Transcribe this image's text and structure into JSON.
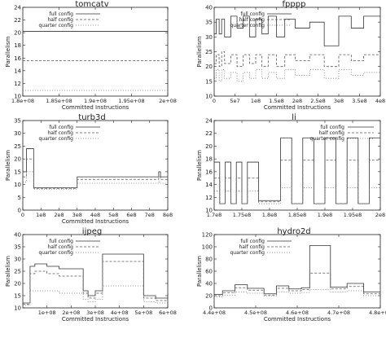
{
  "figure": {
    "colors": {
      "full": "#333333",
      "half": "#555555",
      "quarter": "#777777",
      "axis": "#222222"
    }
  },
  "chart_data": [
    {
      "type": "line",
      "title": "tomcatv",
      "xlabel": "Committed Instructions",
      "ylabel": "Parallelism",
      "xlim": [
        180000000,
        200000000
      ],
      "ylim": [
        10,
        24
      ],
      "xticks": [
        180000000,
        185000000,
        190000000,
        195000000,
        200000000
      ],
      "xtick_labels": [
        "1.8e+08",
        "1.85e+08",
        "1.9e+08",
        "1.95e+08",
        "2e+08"
      ],
      "yticks": [
        10,
        12,
        14,
        16,
        18,
        20,
        22,
        24
      ],
      "ytick_labels": [
        "10",
        "12",
        "14",
        "16",
        "18",
        "20",
        "22",
        "24"
      ],
      "legend": {
        "position": "top-left",
        "entries": [
          "full config",
          "half config",
          "quarter config"
        ]
      },
      "series": [
        {
          "name": "full config",
          "style": "solid",
          "x": [
            180000000,
            200000000
          ],
          "y": [
            20.2,
            20.2
          ]
        },
        {
          "name": "half config",
          "style": "dashed",
          "x": [
            180000000,
            200000000
          ],
          "y": [
            15.6,
            15.6
          ]
        },
        {
          "name": "quarter config",
          "style": "dotted",
          "x": [
            180000000,
            200000000
          ],
          "y": [
            10.9,
            10.9
          ]
        }
      ]
    },
    {
      "type": "line",
      "title": "fpppp",
      "xlabel": "Committed Instructions",
      "ylabel": "Parallelism",
      "xlim": [
        0,
        400000000
      ],
      "ylim": [
        10,
        40
      ],
      "xticks": [
        0,
        50000000,
        100000000,
        150000000,
        200000000,
        250000000,
        300000000,
        350000000,
        400000000
      ],
      "xtick_labels": [
        "0",
        "5e7",
        "1e8",
        "1.5e8",
        "2e8",
        "2.5e8",
        "3e8",
        "3.5e8",
        "4e8"
      ],
      "yticks": [
        10,
        15,
        20,
        25,
        30,
        35,
        40
      ],
      "ytick_labels": [
        "10",
        "15",
        "20",
        "25",
        "30",
        "35",
        "40"
      ],
      "legend": {
        "position": "top-left",
        "entries": [
          "full config",
          "half config",
          "quarter config"
        ]
      },
      "series": [
        {
          "name": "full config",
          "style": "solid",
          "x": [
            0,
            5000000,
            12000000,
            18000000,
            25000000,
            40000000,
            55000000,
            70000000,
            85000000,
            100000000,
            115000000,
            130000000,
            150000000,
            170000000,
            195000000,
            230000000,
            265000000,
            300000000,
            330000000,
            360000000,
            400000000
          ],
          "y": [
            31,
            36,
            31,
            36,
            30,
            37,
            33,
            37,
            30,
            36,
            31,
            37,
            30,
            36,
            33,
            35,
            27,
            37,
            33,
            37,
            36
          ]
        },
        {
          "name": "half config",
          "style": "dashed",
          "x": [
            0,
            5000000,
            12000000,
            18000000,
            25000000,
            40000000,
            55000000,
            70000000,
            85000000,
            100000000,
            115000000,
            130000000,
            150000000,
            170000000,
            195000000,
            230000000,
            265000000,
            300000000,
            330000000,
            360000000,
            400000000
          ],
          "y": [
            21,
            24,
            20,
            25,
            21,
            24,
            20,
            24,
            21,
            24,
            20,
            24,
            20,
            24,
            22,
            24,
            20,
            24,
            22,
            24,
            24
          ]
        },
        {
          "name": "quarter config",
          "style": "dotted",
          "x": [
            0,
            5000000,
            12000000,
            18000000,
            25000000,
            40000000,
            55000000,
            70000000,
            85000000,
            100000000,
            115000000,
            130000000,
            150000000,
            170000000,
            195000000,
            230000000,
            265000000,
            300000000,
            330000000,
            360000000,
            400000000
          ],
          "y": [
            16,
            19,
            15,
            19,
            16,
            18,
            15,
            18,
            16,
            19,
            16,
            18,
            16,
            19,
            17,
            19,
            16,
            19,
            17,
            18,
            18
          ]
        }
      ]
    },
    {
      "type": "line",
      "title": "turb3d",
      "xlabel": "Committed Instructions",
      "ylabel": "Parallelism",
      "xlim": [
        0,
        800000000
      ],
      "ylim": [
        0,
        35
      ],
      "xticks": [
        0,
        100000000,
        200000000,
        300000000,
        400000000,
        500000000,
        600000000,
        700000000,
        800000000
      ],
      "xtick_labels": [
        "0",
        "1e8",
        "2e8",
        "3e8",
        "4e8",
        "5e8",
        "6e8",
        "7e8",
        "8e8"
      ],
      "yticks": [
        0,
        5,
        10,
        15,
        20,
        25,
        30,
        35
      ],
      "ytick_labels": [
        "0",
        "5",
        "10",
        "15",
        "20",
        "25",
        "30",
        "35"
      ],
      "legend": {
        "position": "top-left",
        "entries": [
          "full config",
          "half config",
          "quarter config"
        ]
      },
      "series": [
        {
          "name": "full config",
          "style": "solid",
          "x": [
            0,
            20000000,
            60000000,
            100000000,
            300000000,
            740000000,
            750000000,
            760000000,
            800000000
          ],
          "y": [
            15,
            24,
            8.7,
            8.7,
            13,
            13,
            15,
            13,
            13
          ]
        },
        {
          "name": "half config",
          "style": "dashed",
          "x": [
            0,
            20000000,
            60000000,
            100000000,
            300000000,
            740000000,
            750000000,
            760000000,
            800000000
          ],
          "y": [
            13,
            20,
            8.5,
            8.5,
            12,
            12,
            13,
            12,
            12
          ]
        },
        {
          "name": "quarter config",
          "style": "dotted",
          "x": [
            0,
            20000000,
            60000000,
            100000000,
            300000000,
            740000000,
            750000000,
            760000000,
            800000000
          ],
          "y": [
            11,
            15,
            8.2,
            8.2,
            10.5,
            10.5,
            11,
            10.5,
            10.5
          ]
        }
      ]
    },
    {
      "type": "line",
      "title": "li",
      "xlabel": "",
      "ylabel": "Parallelism",
      "xlim": [
        170000000,
        200000000
      ],
      "ylim": [
        10,
        24
      ],
      "xticks": [
        170000000,
        175000000,
        180000000,
        185000000,
        190000000,
        195000000,
        200000000
      ],
      "xtick_labels": [
        "1.7e8",
        "1.75e8",
        "1.8e8",
        "1.85e8",
        "1.9e8",
        "1.95e8",
        "2e8"
      ],
      "yticks": [
        10,
        12,
        14,
        16,
        18,
        20,
        22,
        24
      ],
      "ytick_labels": [
        "10",
        "12",
        "14",
        "16",
        "18",
        "20",
        "22",
        "24"
      ],
      "legend": {
        "position": "top-right",
        "entries": [
          "full config",
          "half config",
          "quarter config"
        ]
      },
      "series": [
        {
          "name": "full config",
          "style": "solid",
          "x": [
            170000000,
            171000000,
            172000000,
            173000000,
            174000000,
            175000000,
            176000000,
            178000000,
            180000000,
            182000000,
            184000000,
            186000000,
            188000000,
            190000000,
            192000000,
            194000000,
            196000000,
            198000000,
            200000000
          ],
          "y": [
            17.5,
            11,
            17.5,
            11,
            17.5,
            11,
            17.5,
            11.5,
            11.5,
            21.3,
            11,
            21.3,
            11,
            21.3,
            11,
            21.3,
            11,
            21.3,
            21.3
          ]
        },
        {
          "name": "half config",
          "style": "dashed",
          "x": [
            170000000,
            171000000,
            172000000,
            173000000,
            174000000,
            175000000,
            176000000,
            178000000,
            180000000,
            182000000,
            184000000,
            186000000,
            188000000,
            190000000,
            192000000,
            194000000,
            196000000,
            198000000,
            200000000
          ],
          "y": [
            15,
            11,
            15,
            11,
            15,
            11,
            15,
            11.3,
            11.3,
            17.8,
            11,
            17.8,
            11,
            17.8,
            11,
            17.8,
            11,
            17.8,
            17.8
          ]
        },
        {
          "name": "quarter config",
          "style": "dotted",
          "x": [
            170000000,
            171000000,
            172000000,
            173000000,
            174000000,
            175000000,
            176000000,
            178000000,
            180000000,
            182000000,
            184000000,
            186000000,
            188000000,
            190000000,
            192000000,
            194000000,
            196000000,
            198000000,
            200000000
          ],
          "y": [
            13,
            11,
            13,
            11,
            13,
            11,
            13,
            11,
            11,
            13.5,
            11,
            13.5,
            11,
            13.5,
            11,
            13.5,
            11,
            13.5,
            13.5
          ]
        }
      ]
    },
    {
      "type": "line",
      "title": "ijpeg",
      "xlabel": "Committed Instructions",
      "ylabel": "Parallelism",
      "xlim": [
        0,
        600000000
      ],
      "ylim": [
        10,
        40
      ],
      "xticks": [
        100000000,
        200000000,
        300000000,
        400000000,
        500000000,
        600000000
      ],
      "xtick_labels": [
        "1e+08",
        "2e+08",
        "3e+08",
        "4e+08",
        "5e+08",
        "6e+08"
      ],
      "yticks": [
        10,
        15,
        20,
        25,
        30,
        35,
        40
      ],
      "ytick_labels": [
        "10",
        "15",
        "20",
        "25",
        "30",
        "35",
        "40"
      ],
      "legend": {
        "position": "top-left",
        "entries": [
          "full config",
          "half config",
          "quarter config"
        ]
      },
      "series": [
        {
          "name": "full config",
          "style": "solid",
          "x": [
            0,
            30000000,
            50000000,
            100000000,
            150000000,
            250000000,
            270000000,
            300000000,
            330000000,
            480000000,
            500000000,
            550000000,
            600000000
          ],
          "y": [
            12,
            27,
            28,
            27,
            26,
            17,
            15,
            17,
            32,
            32,
            15,
            14,
            13
          ]
        },
        {
          "name": "half config",
          "style": "dashed",
          "x": [
            0,
            30000000,
            50000000,
            100000000,
            150000000,
            250000000,
            270000000,
            300000000,
            330000000,
            480000000,
            500000000,
            550000000,
            600000000
          ],
          "y": [
            11.5,
            24,
            25,
            24,
            23,
            16,
            14,
            16,
            29,
            29,
            14,
            13,
            12.5
          ]
        },
        {
          "name": "quarter config",
          "style": "dotted",
          "x": [
            0,
            30000000,
            50000000,
            100000000,
            150000000,
            250000000,
            270000000,
            300000000,
            330000000,
            480000000,
            500000000,
            550000000,
            600000000
          ],
          "y": [
            11,
            17,
            17,
            17,
            16,
            13.5,
            12.5,
            13.5,
            19,
            19,
            12.5,
            12,
            11.5
          ]
        }
      ]
    },
    {
      "type": "line",
      "title": "hydro2d",
      "xlabel": "Committed Instructions",
      "ylabel": "Parallelism",
      "xlim": [
        440000000,
        480000000
      ],
      "ylim": [
        0,
        120
      ],
      "xticks": [
        440000000,
        450000000,
        460000000,
        470000000,
        480000000
      ],
      "xtick_labels": [
        "4.4e+08",
        "4.5e+08",
        "4.6e+08",
        "4.7e+08",
        "4.8e+08"
      ],
      "yticks": [
        0,
        20,
        40,
        60,
        80,
        100,
        120
      ],
      "ytick_labels": [
        "0",
        "20",
        "40",
        "60",
        "80",
        "100",
        "120"
      ],
      "legend": {
        "position": "top-left",
        "entries": [
          "full config",
          "half config",
          "quarter config"
        ]
      },
      "series": [
        {
          "name": "full config",
          "style": "solid",
          "x": [
            440000000,
            442000000,
            445000000,
            448000000,
            452000000,
            455000000,
            458000000,
            461000000,
            463000000,
            466000000,
            468000000,
            472000000,
            476000000,
            480000000
          ],
          "y": [
            22,
            28,
            38,
            32,
            23,
            36,
            31,
            33,
            102,
            102,
            34,
            40,
            26,
            26
          ]
        },
        {
          "name": "half config",
          "style": "dashed",
          "x": [
            440000000,
            442000000,
            445000000,
            448000000,
            452000000,
            455000000,
            458000000,
            461000000,
            463000000,
            466000000,
            468000000,
            472000000,
            476000000,
            480000000
          ],
          "y": [
            20,
            25,
            33,
            29,
            21,
            32,
            28,
            30,
            57,
            57,
            31,
            35,
            23,
            23
          ]
        },
        {
          "name": "quarter config",
          "style": "dotted",
          "x": [
            440000000,
            442000000,
            445000000,
            448000000,
            452000000,
            455000000,
            458000000,
            461000000,
            463000000,
            466000000,
            468000000,
            472000000,
            476000000,
            480000000
          ],
          "y": [
            18,
            21,
            26,
            24,
            19,
            26,
            24,
            25,
            30,
            30,
            26,
            28,
            20,
            20
          ]
        }
      ]
    }
  ]
}
